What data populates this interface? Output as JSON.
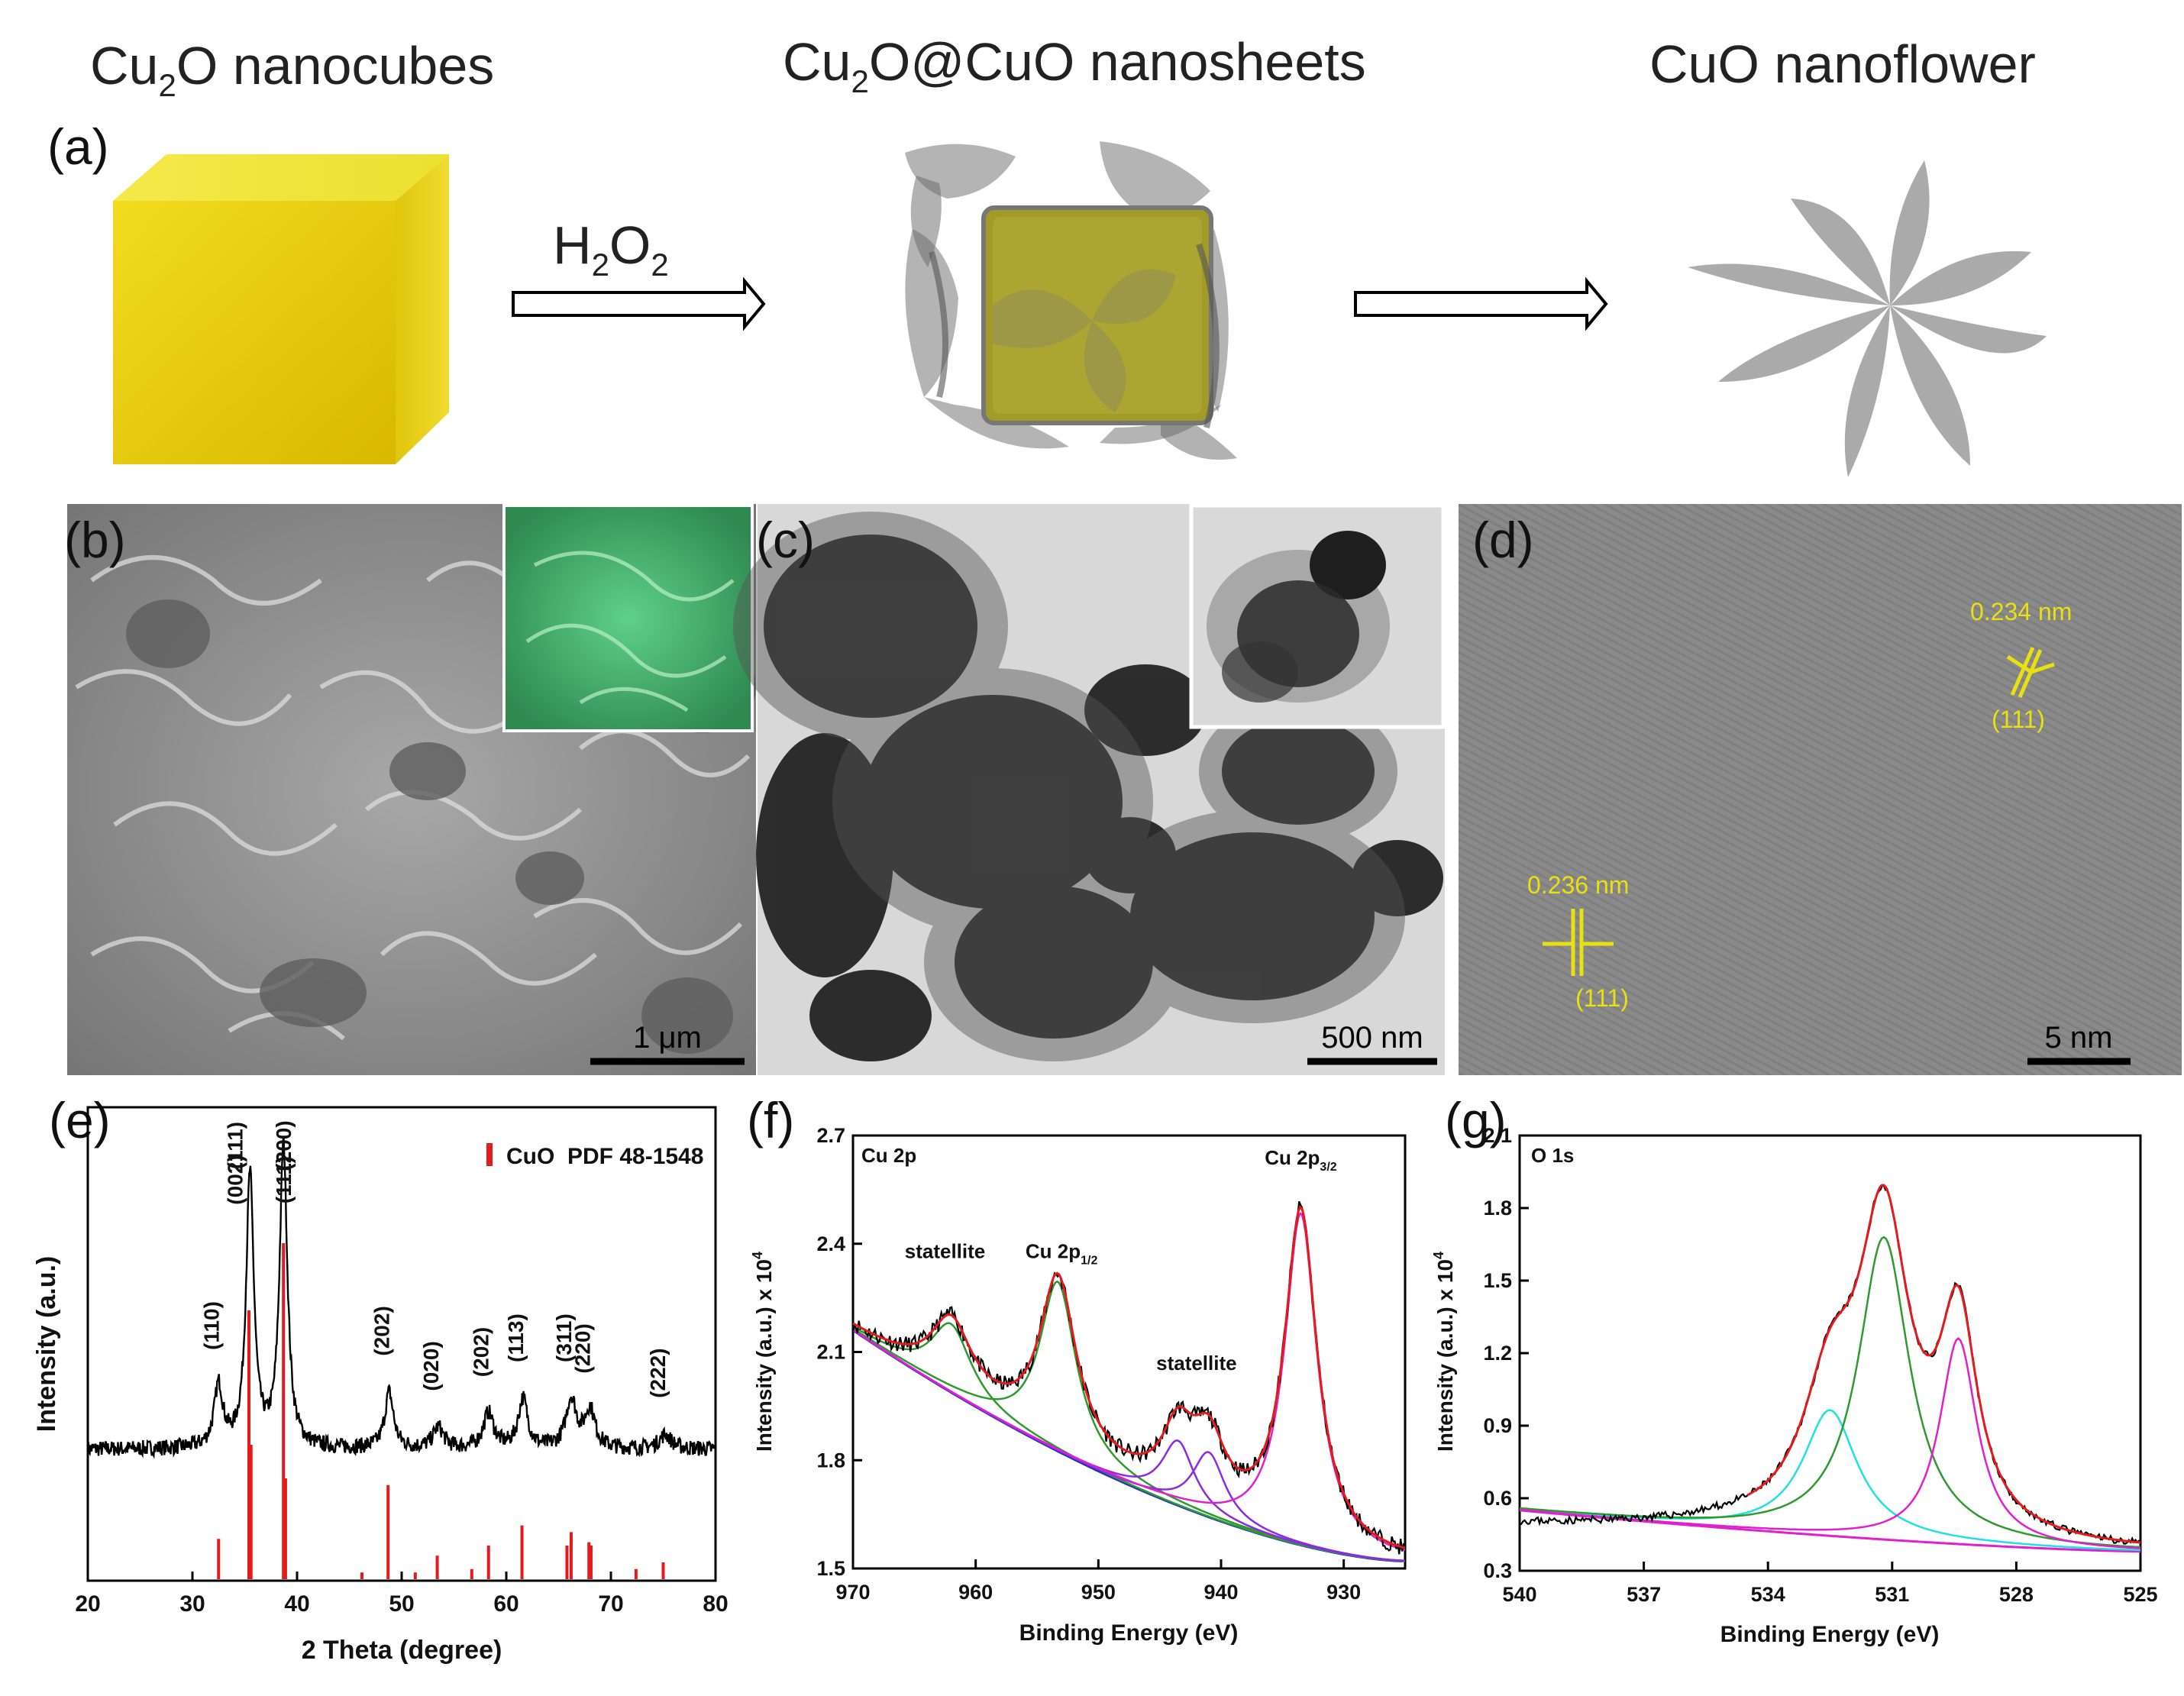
{
  "panel_a": {
    "label": "(a)",
    "title_cu2o": {
      "base": "Cu",
      "sub": "2",
      "rest": "O nanocubes"
    },
    "title_core_shell": {
      "base": "Cu",
      "sub": "2",
      "rest": "O@CuO nanosheets"
    },
    "title_flower": "CuO nanoflower",
    "reagent": {
      "a": "H",
      "s1": "2",
      "b": "O",
      "s2": "2"
    }
  },
  "panel_b": {
    "label": "(b)",
    "scale_bar": "1 μm"
  },
  "panel_c": {
    "label": "(c)",
    "scale_bar": "500 nm"
  },
  "panel_d": {
    "label": "(d)",
    "scale_bar": "5 nm",
    "spacing_1": "0.234 nm",
    "plane_1": "(111)",
    "spacing_2": "0.236 nm",
    "plane_2": "(111)"
  },
  "colors": {
    "cube": "#e8cd10",
    "sheet": "#7a7a7a",
    "core": "#a8a230",
    "lattice": "#e8e010",
    "ref_bar": "#e41a1c",
    "inset_b": "#3fae6a",
    "fit_red": "#e41a1c",
    "fit_green": "#2e9a2e",
    "fit_magenta": "#e020d0",
    "fit_blue": "#2030c8",
    "fit_cyan": "#20e0e0",
    "fit_purple": "#8a2be2"
  },
  "chart_data": [
    {
      "id": "e",
      "label": "(e)",
      "type": "line",
      "xlabel": "2 Theta (degree)",
      "ylabel": "Intensity (a.u.)",
      "xlim": [
        20,
        80
      ],
      "xticks": [
        20,
        30,
        40,
        50,
        60,
        70,
        80
      ],
      "legend": "CuO  PDF 48-1548",
      "legend_position": "top-right",
      "peaks": [
        {
          "x": 32.5,
          "h": 0.35,
          "w": 0.5,
          "label": "(110)"
        },
        {
          "x": 35.5,
          "h": 1.55,
          "w": 0.45,
          "label": "(002)"
        },
        {
          "x": 35.5,
          "h": 0,
          "w": 0.5,
          "label": "(111)"
        },
        {
          "x": 38.7,
          "h": 1.72,
          "w": 0.45,
          "label": "(111)"
        },
        {
          "x": 38.7,
          "h": 0,
          "w": 0.5,
          "label": "(200)"
        },
        {
          "x": 48.8,
          "h": 0.32,
          "w": 0.5,
          "label": "(202)"
        },
        {
          "x": 53.5,
          "h": 0.12,
          "w": 0.6,
          "label": "(020)"
        },
        {
          "x": 58.3,
          "h": 0.2,
          "w": 0.6,
          "label": "(202)"
        },
        {
          "x": 61.6,
          "h": 0.28,
          "w": 0.55,
          "label": "(113)"
        },
        {
          "x": 66.2,
          "h": 0.28,
          "w": 0.6,
          "label": "(311)"
        },
        {
          "x": 68.0,
          "h": 0.22,
          "w": 0.6,
          "label": "(220)"
        },
        {
          "x": 75.2,
          "h": 0.08,
          "w": 0.7,
          "label": "(222)"
        }
      ],
      "reference_bars": [
        {
          "x": 32.5,
          "v": 0.12
        },
        {
          "x": 35.4,
          "v": 0.8
        },
        {
          "x": 35.6,
          "v": 0.4
        },
        {
          "x": 38.7,
          "v": 1.0
        },
        {
          "x": 38.9,
          "v": 0.3
        },
        {
          "x": 46.2,
          "v": 0.02
        },
        {
          "x": 48.7,
          "v": 0.28
        },
        {
          "x": 51.3,
          "v": 0.02
        },
        {
          "x": 53.4,
          "v": 0.07
        },
        {
          "x": 56.7,
          "v": 0.03
        },
        {
          "x": 58.3,
          "v": 0.1
        },
        {
          "x": 61.5,
          "v": 0.16
        },
        {
          "x": 65.8,
          "v": 0.1
        },
        {
          "x": 66.2,
          "v": 0.14
        },
        {
          "x": 67.9,
          "v": 0.11
        },
        {
          "x": 68.1,
          "v": 0.1
        },
        {
          "x": 72.4,
          "v": 0.03
        },
        {
          "x": 75.0,
          "v": 0.05
        }
      ]
    },
    {
      "id": "f",
      "label": "(f)",
      "type": "line",
      "xlabel": "Binding Energy (eV)",
      "ylabel": "Intensity (a.u.) x 10",
      "ylabel_sup": "4",
      "region": "Cu 2p",
      "xlim": [
        970,
        925
      ],
      "ylim": [
        1.5,
        2.7
      ],
      "xticks": [
        970,
        960,
        950,
        940,
        930
      ],
      "yticks": [
        1.5,
        1.8,
        2.1,
        2.4,
        2.7
      ],
      "background": {
        "a": 1.52,
        "b": 0.64,
        "p": 1.6
      },
      "components": [
        {
          "c": 962.0,
          "A": 0.19,
          "w": 2.0,
          "color": "fit_green"
        },
        {
          "c": 953.3,
          "A": 0.47,
          "w": 1.8,
          "color": "fit_green"
        },
        {
          "c": 943.5,
          "A": 0.18,
          "w": 1.6,
          "color": "fit_purple"
        },
        {
          "c": 941.0,
          "A": 0.18,
          "w": 1.6,
          "color": "fit_purple"
        },
        {
          "c": 933.5,
          "A": 0.92,
          "w": 1.6,
          "color": "fit_magenta"
        }
      ],
      "annotations": [
        {
          "x": 962.5,
          "y": 2.36,
          "text": "statellite"
        },
        {
          "x": 953.0,
          "y": 2.36,
          "text": "Cu 2p",
          "sub": "1/2"
        },
        {
          "x": 942.0,
          "y": 2.05,
          "text": "statellite"
        },
        {
          "x": 933.5,
          "y": 2.62,
          "text": "Cu 2p",
          "sub": "3/2"
        }
      ]
    },
    {
      "id": "g",
      "label": "(g)",
      "type": "line",
      "xlabel": "Binding Energy (eV)",
      "ylabel": "Intensity (a.u.) x 10",
      "ylabel_sup": "4",
      "region": "O 1s",
      "xlim": [
        540,
        525
      ],
      "ylim": [
        0.3,
        2.1
      ],
      "xticks": [
        540,
        537,
        534,
        531,
        528,
        525
      ],
      "yticks": [
        0.3,
        0.6,
        0.9,
        1.2,
        1.5,
        1.8,
        2.1
      ],
      "background": {
        "start": 0.55,
        "end": 0.38
      },
      "components": [
        {
          "c": 532.5,
          "A": 0.52,
          "w": 0.8,
          "color": "fit_cyan"
        },
        {
          "c": 531.2,
          "A": 1.25,
          "w": 0.75,
          "color": "fit_green"
        },
        {
          "c": 529.4,
          "A": 0.85,
          "w": 0.55,
          "color": "fit_magenta"
        }
      ]
    }
  ]
}
